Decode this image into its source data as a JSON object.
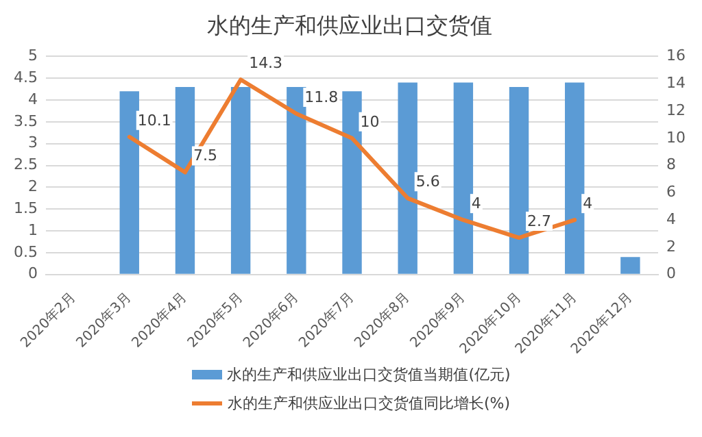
{
  "chart_data": {
    "type": "bar",
    "title": "水的生产和供应业出口交货值",
    "categories": [
      "2020年2月",
      "2020年3月",
      "2020年4月",
      "2020年5月",
      "2020年6月",
      "2020年7月",
      "2020年8月",
      "2020年9月",
      "2020年10月",
      "2020年11月",
      "2020年12月"
    ],
    "series": [
      {
        "name": "水的生产和供应业出口交货值当期值(亿元)",
        "color": "#5b9bd5",
        "values": [
          null,
          4.2,
          4.3,
          4.3,
          4.3,
          4.2,
          4.4,
          4.4,
          4.3,
          4.4,
          0.4
        ]
      },
      {
        "name": "水的生产和供应业出口交货值同比增长(%)",
        "type": "line",
        "axis": "y2",
        "color": "#ed7d31",
        "values": [
          null,
          10.1,
          7.5,
          14.3,
          11.8,
          10,
          5.6,
          4,
          2.7,
          4,
          null
        ],
        "data_labels": true
      }
    ],
    "ylim": [
      0,
      5
    ],
    "yticks": [
      0,
      0.5,
      1,
      1.5,
      2,
      2.5,
      3,
      3.5,
      4,
      4.5,
      5
    ],
    "y2lim": [
      0,
      16
    ],
    "y2ticks": [
      0,
      2,
      4,
      6,
      8,
      10,
      12,
      14,
      16
    ],
    "grid": "y",
    "legend": "bottom",
    "marker": "none"
  }
}
